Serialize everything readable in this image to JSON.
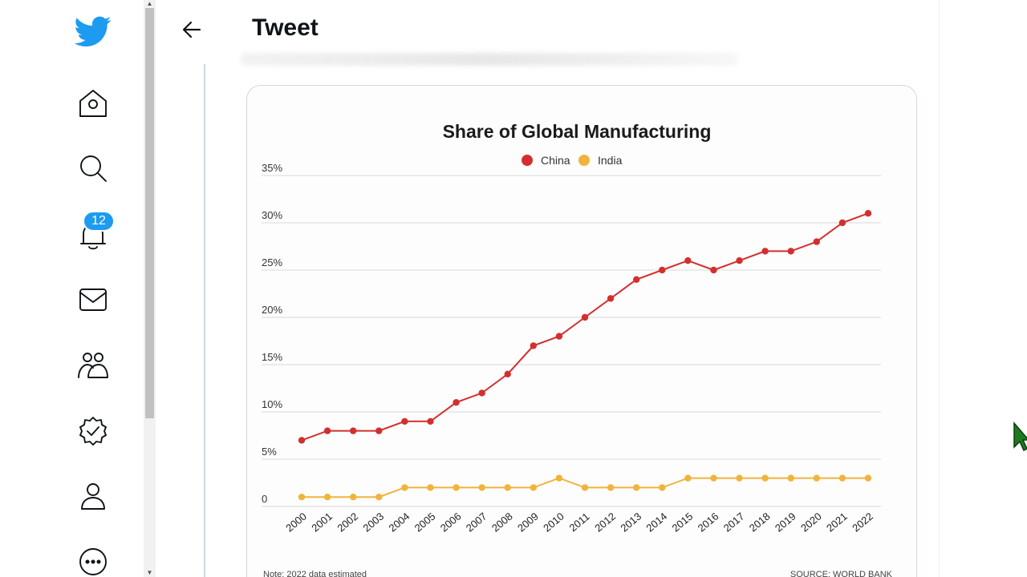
{
  "header": {
    "title": "Tweet"
  },
  "nav": {
    "items": [
      {
        "name": "home"
      },
      {
        "name": "explore"
      },
      {
        "name": "notifications",
        "badge": "12"
      },
      {
        "name": "messages"
      },
      {
        "name": "communities"
      },
      {
        "name": "verified"
      },
      {
        "name": "profile"
      },
      {
        "name": "more"
      }
    ]
  },
  "colors": {
    "china": "#d32f2f",
    "india": "#f0b43c",
    "accent": "#1d9bf0"
  },
  "chart_data": {
    "type": "line",
    "title": "Share of Global Manufacturing",
    "legend": [
      "China",
      "India"
    ],
    "legend_position": "top-center",
    "x": [
      "2000",
      "2001",
      "2002",
      "2003",
      "2004",
      "2005",
      "2006",
      "2007",
      "2008",
      "2009",
      "2010",
      "2011",
      "2012",
      "2013",
      "2014",
      "2015",
      "2016",
      "2017",
      "2018",
      "2019",
      "2020",
      "2021",
      "2022"
    ],
    "series": [
      {
        "name": "China",
        "values": [
          7,
          8,
          8,
          8,
          9,
          9,
          11,
          12,
          14,
          17,
          18,
          20,
          22,
          24,
          25,
          26,
          25,
          26,
          27,
          27,
          28,
          30,
          31
        ]
      },
      {
        "name": "India",
        "values": [
          1,
          1,
          1,
          1,
          2,
          2,
          2,
          2,
          2,
          2,
          3,
          2,
          2,
          2,
          2,
          3,
          3,
          3,
          3,
          3,
          3,
          3,
          3
        ]
      }
    ],
    "y_ticks": [
      "0",
      "5%",
      "10%",
      "15%",
      "20%",
      "25%",
      "30%",
      "35%"
    ],
    "ylim": [
      0,
      35
    ],
    "grid": true,
    "note": "Note: 2022 data estimated",
    "source": "SOURCE: WORLD BANK"
  }
}
